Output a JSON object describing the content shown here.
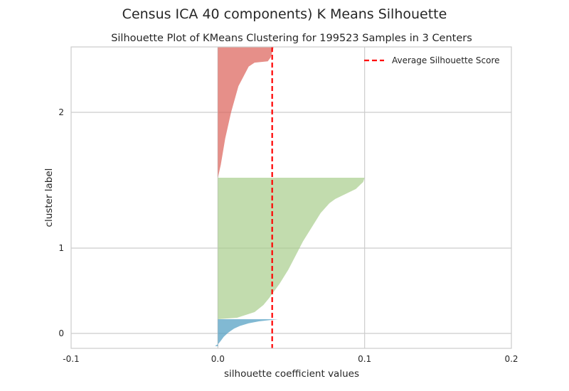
{
  "chart_data": {
    "type": "silhouette",
    "suptitle": "Census ICA 40 components) K Means Silhouette",
    "title": "Silhouette Plot of KMeans Clustering for 199523 Samples in 3 Centers",
    "xlabel": "silhouette coefficient values",
    "ylabel": "cluster label",
    "xlim": [
      -0.1,
      0.2
    ],
    "x_ticks": [
      "-0.1",
      "0.0",
      "0.1",
      "0.2"
    ],
    "x_tick_values": [
      -0.1,
      0.0,
      0.1,
      0.2
    ],
    "y_ticks": [
      "0",
      "1",
      "2"
    ],
    "grid": true,
    "legend_position": "top-right",
    "average_score": 0.037,
    "average_label": "Average Silhouette Score",
    "average_color": "#ff0000",
    "clusters": [
      {
        "label": "0",
        "color": "#4c9bc0",
        "min_value": -0.002,
        "max_value": 0.041,
        "profile": [
          [
            0.0,
            0.041
          ],
          [
            0.03,
            0.036
          ],
          [
            0.08,
            0.028
          ],
          [
            0.15,
            0.021
          ],
          [
            0.25,
            0.015
          ],
          [
            0.35,
            0.011
          ],
          [
            0.5,
            0.007
          ],
          [
            0.65,
            0.004
          ],
          [
            0.8,
            0.002
          ],
          [
            0.9,
            0.0005
          ],
          [
            1.0,
            -0.002
          ]
        ]
      },
      {
        "label": "1",
        "color": "#a8cd8c",
        "min_value": 0.0,
        "max_value": 0.1,
        "profile": [
          [
            0.0,
            0.1
          ],
          [
            0.03,
            0.099
          ],
          [
            0.08,
            0.094
          ],
          [
            0.15,
            0.08
          ],
          [
            0.18,
            0.076
          ],
          [
            0.25,
            0.07
          ],
          [
            0.35,
            0.064
          ],
          [
            0.45,
            0.058
          ],
          [
            0.55,
            0.053
          ],
          [
            0.65,
            0.048
          ],
          [
            0.75,
            0.042
          ],
          [
            0.85,
            0.035
          ],
          [
            0.9,
            0.031
          ],
          [
            0.95,
            0.025
          ],
          [
            0.99,
            0.013
          ],
          [
            1.0,
            0.0
          ]
        ]
      },
      {
        "label": "2",
        "color": "#db5f57",
        "min_value": 0.0,
        "max_value": 0.038,
        "profile": [
          [
            0.0,
            0.038
          ],
          [
            0.04,
            0.037
          ],
          [
            0.08,
            0.036
          ],
          [
            0.11,
            0.034
          ],
          [
            0.12,
            0.025
          ],
          [
            0.15,
            0.021
          ],
          [
            0.3,
            0.014
          ],
          [
            0.5,
            0.009
          ],
          [
            0.7,
            0.005
          ],
          [
            0.9,
            0.002
          ],
          [
            1.0,
            0.0
          ]
        ]
      }
    ]
  }
}
